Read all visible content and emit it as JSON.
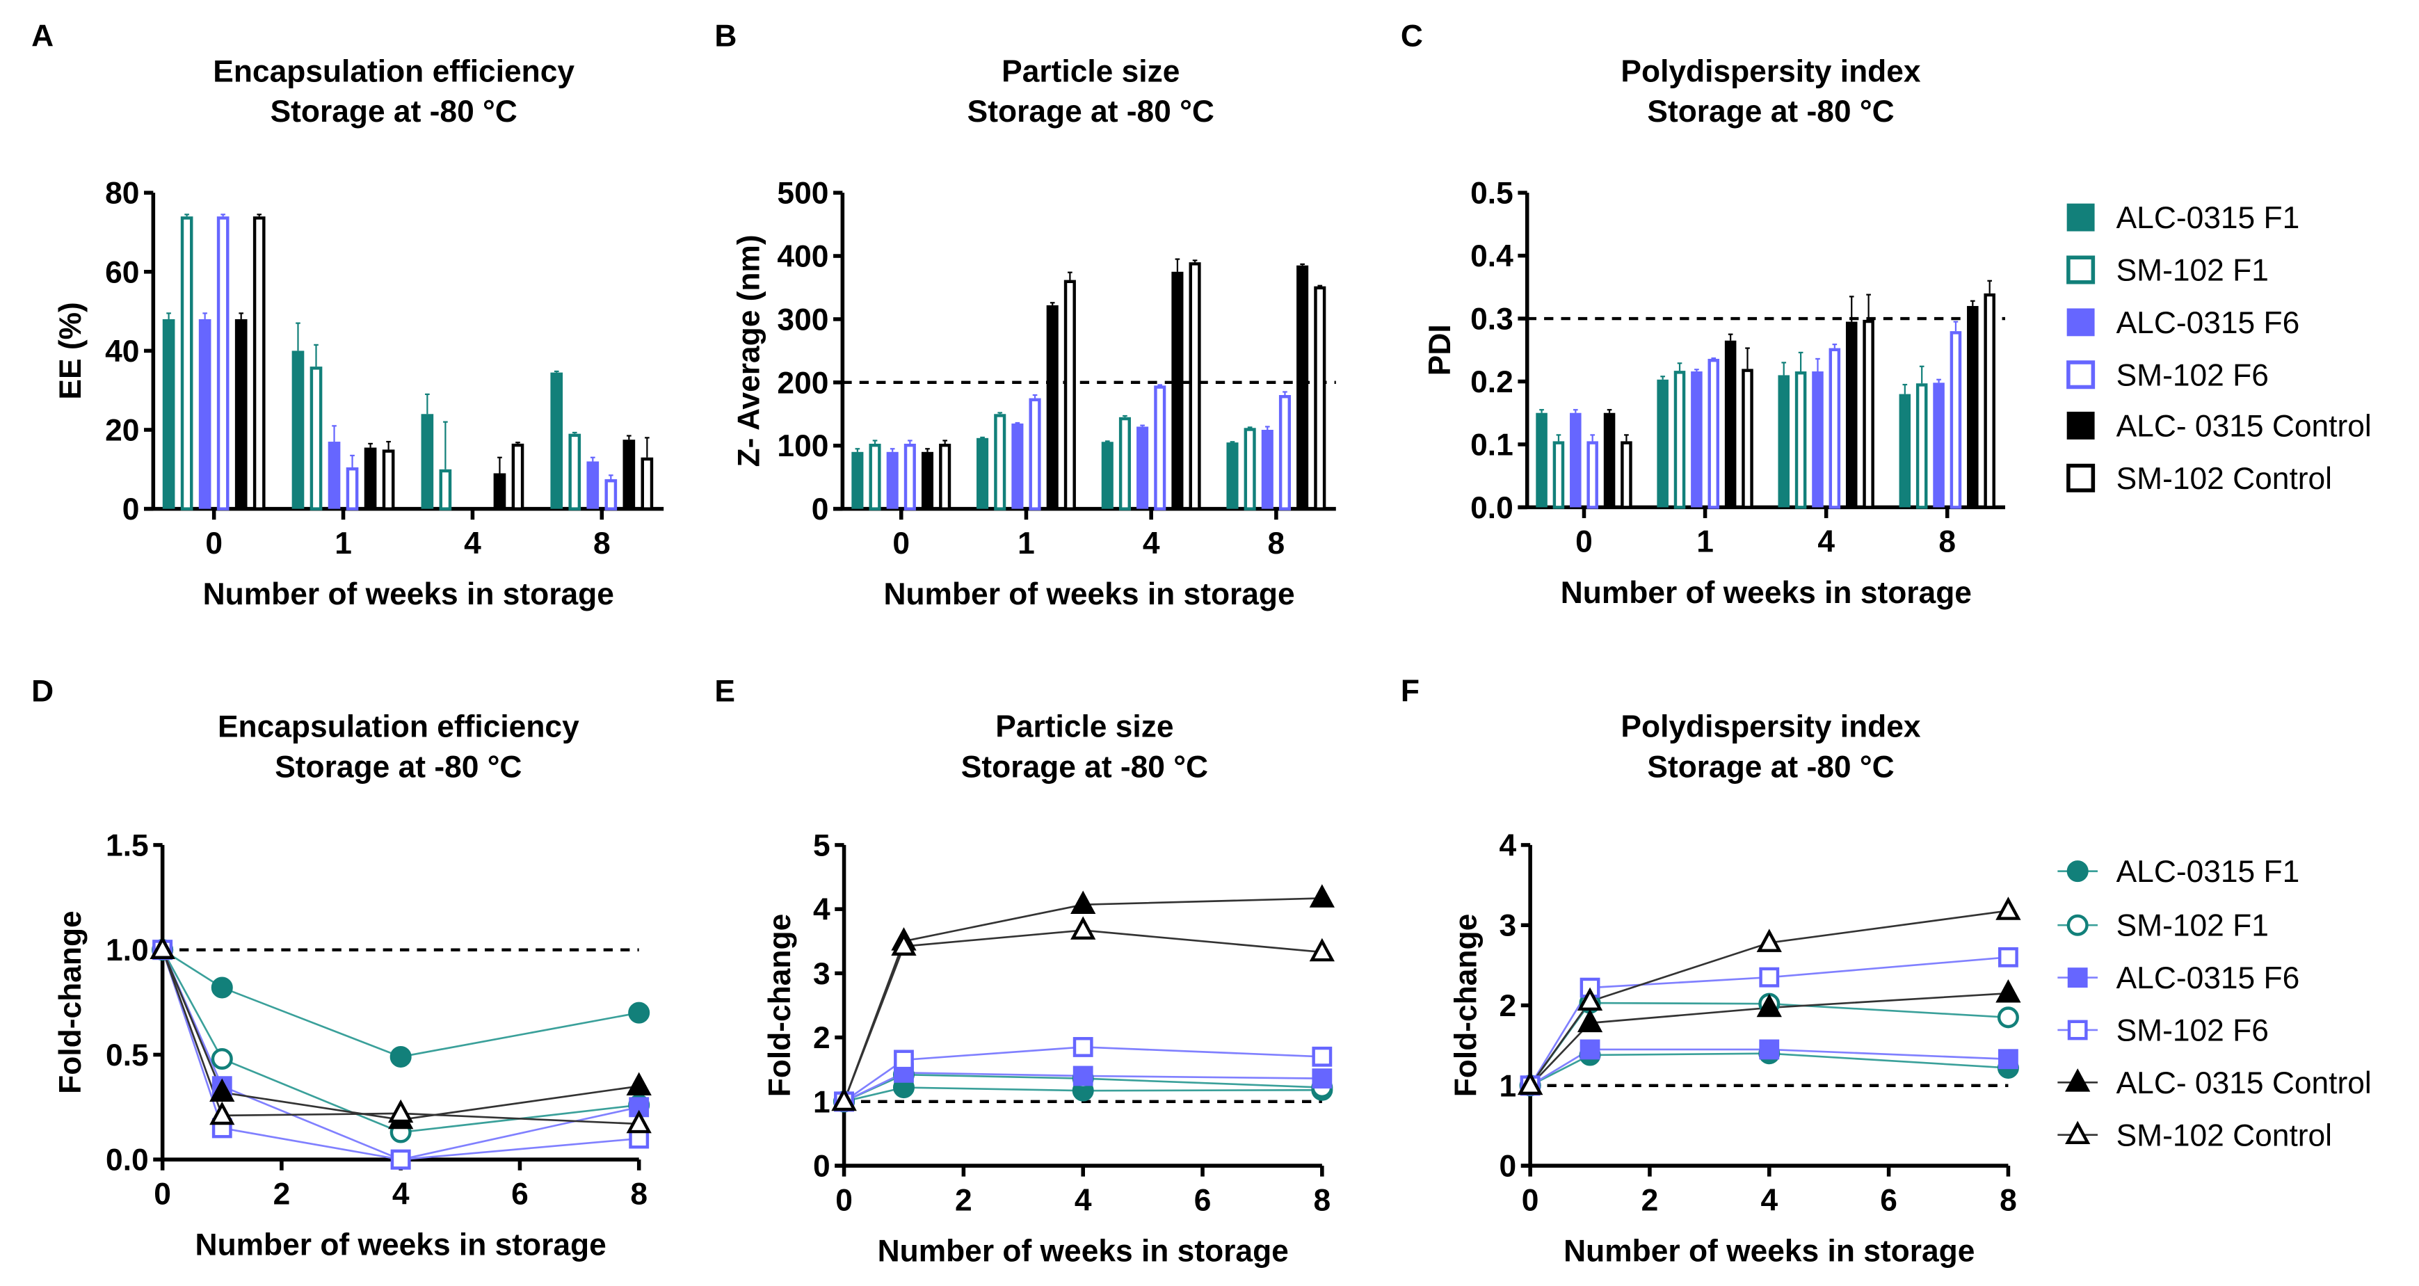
{
  "colors": {
    "teal": "#12807a",
    "purple": "#6666ff",
    "black": "#000000",
    "line_teal": "#3aa09a",
    "line_purple": "#8080ff",
    "line_black": "#333333"
  },
  "legend_bar": {
    "items": [
      {
        "label": "ALC-0315 F1",
        "color": "#12807a",
        "hollow": false
      },
      {
        "label": "SM-102 F1",
        "color": "#12807a",
        "hollow": true
      },
      {
        "label": "ALC-0315 F6",
        "color": "#6666ff",
        "hollow": false
      },
      {
        "label": "SM-102 F6",
        "color": "#6666ff",
        "hollow": true
      },
      {
        "label": "ALC- 0315 Control",
        "color": "#000000",
        "hollow": false
      },
      {
        "label": "SM-102 Control",
        "color": "#000000",
        "hollow": true
      }
    ]
  },
  "legend_line": {
    "items": [
      {
        "label": "ALC-0315 F1",
        "color": "#12807a",
        "marker": "circle",
        "hollow": false
      },
      {
        "label": "SM-102 F1",
        "color": "#12807a",
        "marker": "circle",
        "hollow": true
      },
      {
        "label": "ALC-0315 F6",
        "color": "#6666ff",
        "marker": "square",
        "hollow": false
      },
      {
        "label": "SM-102 F6",
        "color": "#6666ff",
        "marker": "square",
        "hollow": true
      },
      {
        "label": "ALC- 0315 Control",
        "color": "#000000",
        "marker": "triangle",
        "hollow": false
      },
      {
        "label": "SM-102 Control",
        "color": "#000000",
        "marker": "triangle",
        "hollow": true
      }
    ]
  },
  "chart_data": [
    {
      "panel": "A",
      "type": "bar",
      "title": [
        "Encapsulation efficiency",
        "Storage at -80 °C"
      ],
      "xlabel": "Number of weeks in storage",
      "ylabel": "EE (%)",
      "categories": [
        "0",
        "1",
        "4",
        "8"
      ],
      "ylim": [
        0,
        80
      ],
      "yticks": [
        "0",
        "20",
        "40",
        "60",
        "80"
      ],
      "ytick_values": [
        0,
        20,
        40,
        60,
        80
      ],
      "reference_line": null,
      "series": [
        {
          "name": "ALC-0315 F1",
          "values": [
            48,
            40,
            24,
            34.5
          ],
          "errors": [
            1.5,
            7,
            5,
            0.3
          ]
        },
        {
          "name": "SM-102 F1",
          "values": [
            74,
            36,
            10,
            19
          ],
          "errors": [
            0.5,
            5.5,
            12,
            0.3
          ]
        },
        {
          "name": "ALC-0315 F6",
          "values": [
            48,
            17,
            0,
            12
          ],
          "errors": [
            1.5,
            4,
            0,
            1
          ]
        },
        {
          "name": "SM-102 F6",
          "values": [
            74,
            10.5,
            0,
            7.5
          ],
          "errors": [
            0.5,
            3,
            0,
            1
          ]
        },
        {
          "name": "ALC- 0315 Control",
          "values": [
            48,
            15.5,
            9,
            17.5
          ],
          "errors": [
            1.5,
            1,
            4,
            1
          ]
        },
        {
          "name": "SM-102 Control",
          "values": [
            74,
            15,
            16.5,
            13
          ],
          "errors": [
            0.5,
            2,
            0.3,
            5
          ]
        }
      ]
    },
    {
      "panel": "B",
      "type": "bar",
      "title": [
        "Particle size",
        "Storage at -80 °C"
      ],
      "xlabel": "Number of weeks in storage",
      "ylabel": "Z- Average (nm)",
      "categories": [
        "0",
        "1",
        "4",
        "8"
      ],
      "ylim": [
        0,
        500
      ],
      "yticks": [
        "0",
        "100",
        "200",
        "300",
        "400",
        "500"
      ],
      "ytick_values": [
        0,
        100,
        200,
        300,
        400,
        500
      ],
      "reference_line": 200,
      "series": [
        {
          "name": "ALC-0315 F1",
          "values": [
            90,
            112,
            106,
            105
          ],
          "errors": [
            5,
            1,
            1,
            1
          ]
        },
        {
          "name": "SM-102 F1",
          "values": [
            103,
            150,
            145,
            128
          ],
          "errors": [
            5,
            2,
            2,
            1
          ]
        },
        {
          "name": "ALC-0315 F6",
          "values": [
            90,
            135,
            130,
            125
          ],
          "errors": [
            5,
            1,
            2,
            5
          ]
        },
        {
          "name": "SM-102 F6",
          "values": [
            103,
            175,
            195,
            180
          ],
          "errors": [
            5,
            5,
            1,
            5
          ]
        },
        {
          "name": "ALC- 0315 Control",
          "values": [
            90,
            322,
            375,
            385
          ],
          "errors": [
            5,
            4,
            20,
            2
          ]
        },
        {
          "name": "SM-102 Control",
          "values": [
            103,
            362,
            390,
            352
          ],
          "errors": [
            5,
            12,
            3,
            1
          ]
        }
      ]
    },
    {
      "panel": "C",
      "type": "bar",
      "title": [
        "Polydispersity index",
        "Storage at -80 °C"
      ],
      "xlabel": "Number of weeks in storage",
      "ylabel": "PDI",
      "categories": [
        "0",
        "1",
        "4",
        "8"
      ],
      "ylim": [
        0,
        0.5
      ],
      "yticks": [
        "0.0",
        "0.1",
        "0.2",
        "0.3",
        "0.4",
        "0.5"
      ],
      "ytick_values": [
        0,
        0.1,
        0.2,
        0.3,
        0.4,
        0.5
      ],
      "reference_line": 0.3,
      "series": [
        {
          "name": "ALC-0315 F1",
          "values": [
            0.15,
            0.203,
            0.21,
            0.18
          ],
          "errors": [
            0.005,
            0.005,
            0.02,
            0.015
          ]
        },
        {
          "name": "SM-102 F1",
          "values": [
            0.105,
            0.217,
            0.216,
            0.197
          ],
          "errors": [
            0.01,
            0.012,
            0.03,
            0.027
          ]
        },
        {
          "name": "ALC-0315 F6",
          "values": [
            0.15,
            0.216,
            0.216,
            0.198
          ],
          "errors": [
            0.005,
            0.003,
            0.02,
            0.005
          ]
        },
        {
          "name": "SM-102 F6",
          "values": [
            0.105,
            0.236,
            0.253,
            0.28
          ],
          "errors": [
            0.01,
            0.001,
            0.006,
            0.015
          ]
        },
        {
          "name": "ALC- 0315 Control",
          "values": [
            0.15,
            0.265,
            0.295,
            0.32
          ],
          "errors": [
            0.005,
            0.01,
            0.04,
            0.008
          ]
        },
        {
          "name": "SM-102 Control",
          "values": [
            0.105,
            0.22,
            0.298,
            0.34
          ],
          "errors": [
            0.01,
            0.033,
            0.04,
            0.02
          ]
        }
      ]
    },
    {
      "panel": "D",
      "type": "line",
      "title": [
        "Encapsulation efficiency",
        "Storage at -80 °C"
      ],
      "xlabel": "Number of weeks in storage",
      "ylabel": "Fold-change",
      "x": [
        0,
        1,
        4,
        8
      ],
      "xlim": [
        0,
        8
      ],
      "xticks": [
        "0",
        "2",
        "4",
        "6",
        "8"
      ],
      "xtick_values": [
        0,
        2,
        4,
        6,
        8
      ],
      "ylim": [
        0,
        1.5
      ],
      "yticks": [
        "0.0",
        "0.5",
        "1.0",
        "1.5"
      ],
      "ytick_values": [
        0,
        0.5,
        1.0,
        1.5
      ],
      "reference_line": 1.0,
      "series": [
        {
          "name": "ALC-0315 F1",
          "values": [
            1,
            0.82,
            0.49,
            0.7
          ]
        },
        {
          "name": "SM-102 F1",
          "values": [
            1,
            0.48,
            0.13,
            0.26
          ]
        },
        {
          "name": "ALC-0315 F6",
          "values": [
            1,
            0.35,
            0.0,
            0.25
          ]
        },
        {
          "name": "SM-102 F6",
          "values": [
            1,
            0.15,
            0.0,
            0.1
          ]
        },
        {
          "name": "ALC- 0315 Control",
          "values": [
            1,
            0.32,
            0.19,
            0.35
          ]
        },
        {
          "name": "SM-102 Control",
          "values": [
            1,
            0.21,
            0.22,
            0.17
          ]
        }
      ]
    },
    {
      "panel": "E",
      "type": "line",
      "title": [
        "Particle size",
        "Storage at -80 °C"
      ],
      "xlabel": "Number of weeks in storage",
      "ylabel": "Fold-change",
      "x": [
        0,
        1,
        4,
        8
      ],
      "xlim": [
        0,
        8
      ],
      "xticks": [
        "0",
        "2",
        "4",
        "6",
        "8"
      ],
      "xtick_values": [
        0,
        2,
        4,
        6,
        8
      ],
      "ylim": [
        0,
        5
      ],
      "yticks": [
        "0",
        "1",
        "2",
        "3",
        "4",
        "5"
      ],
      "ytick_values": [
        0,
        1,
        2,
        3,
        4,
        5
      ],
      "reference_line": 1,
      "series": [
        {
          "name": "ALC-0315 F1",
          "values": [
            1,
            1.22,
            1.17,
            1.18
          ]
        },
        {
          "name": "SM-102 F1",
          "values": [
            1,
            1.42,
            1.36,
            1.22
          ]
        },
        {
          "name": "ALC-0315 F6",
          "values": [
            1,
            1.45,
            1.4,
            1.36
          ]
        },
        {
          "name": "SM-102 F6",
          "values": [
            1,
            1.65,
            1.85,
            1.7
          ]
        },
        {
          "name": "ALC- 0315 Control",
          "values": [
            1,
            3.5,
            4.07,
            4.17
          ]
        },
        {
          "name": "SM-102 Control",
          "values": [
            1,
            3.42,
            3.67,
            3.33
          ]
        }
      ]
    },
    {
      "panel": "F",
      "type": "line",
      "title": [
        "Polydispersity index",
        "Storage at -80 °C"
      ],
      "xlabel": "Number of weeks in storage",
      "ylabel": "Fold-change",
      "x": [
        0,
        1,
        4,
        8
      ],
      "xlim": [
        0,
        8
      ],
      "xticks": [
        "0",
        "2",
        "4",
        "6",
        "8"
      ],
      "xtick_values": [
        0,
        2,
        4,
        6,
        8
      ],
      "ylim": [
        0,
        4
      ],
      "yticks": [
        "0",
        "1",
        "2",
        "3",
        "4"
      ],
      "ytick_values": [
        0,
        1,
        2,
        3,
        4
      ],
      "reference_line": 1,
      "series": [
        {
          "name": "ALC-0315 F1",
          "values": [
            1,
            1.38,
            1.4,
            1.22
          ]
        },
        {
          "name": "SM-102 F1",
          "values": [
            1,
            2.03,
            2.02,
            1.85
          ]
        },
        {
          "name": "ALC-0315 F6",
          "values": [
            1,
            1.45,
            1.45,
            1.33
          ]
        },
        {
          "name": "SM-102 F6",
          "values": [
            1,
            2.22,
            2.35,
            2.6
          ]
        },
        {
          "name": "ALC- 0315 Control",
          "values": [
            1,
            1.78,
            1.97,
            2.15
          ]
        },
        {
          "name": "SM-102 Control",
          "values": [
            1,
            2.05,
            2.78,
            3.18
          ]
        }
      ]
    }
  ]
}
